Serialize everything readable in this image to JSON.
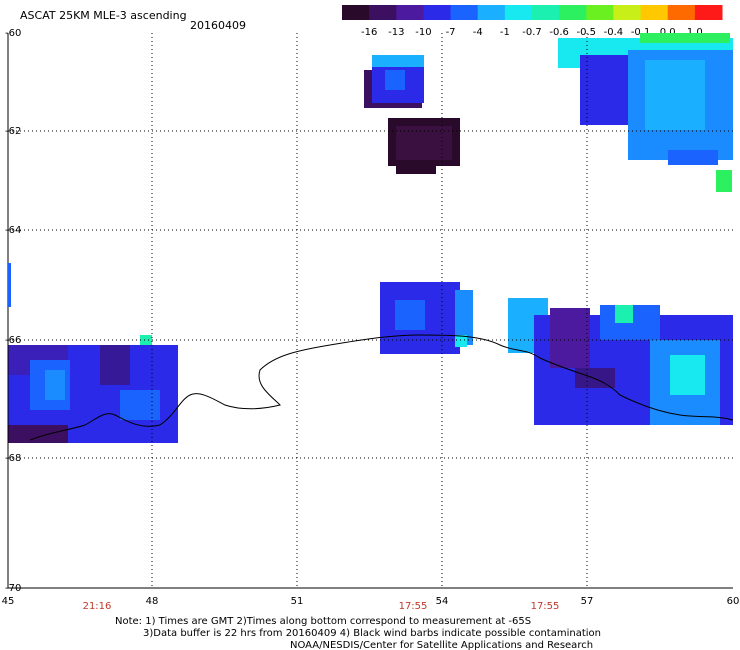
{
  "header": {
    "product": "ASCAT 25KM MLE-3 ascending",
    "date": "20160409"
  },
  "colorbar": {
    "labels": [
      "-16",
      "-13",
      "-10",
      "-7",
      "-4",
      "-1",
      "-0.7",
      "-0.6",
      "-0.5",
      "-0.4",
      "-0.1",
      "0.0",
      "1.0"
    ],
    "colors": [
      "#2a0a2a",
      "#3d0f60",
      "#4b1a9e",
      "#2a2ae8",
      "#1a63ff",
      "#1ab0ff",
      "#18e8f0",
      "#1cf0b0",
      "#2cf060",
      "#6af020",
      "#c8f018",
      "#ffc800",
      "#ff6a00",
      "#ff1a1a"
    ]
  },
  "axes": {
    "lon_labels": [
      "45",
      "48",
      "51",
      "54",
      "57",
      "60"
    ],
    "lat_labels": [
      "-60",
      "-62",
      "-64",
      "-66",
      "-68",
      "-70"
    ]
  },
  "times": [
    "21:16",
    "17:55",
    "17:55"
  ],
  "notes": {
    "line1": "Note: 1) Times are GMT 2)Times along bottom correspond to measurement at -65S",
    "line2": "3)Data buffer is 22 hrs from 20160409 4) Black wind barbs indicate possible contamination",
    "line3": "NOAA/NESDIS/Center for Satellite Applications and Research"
  }
}
